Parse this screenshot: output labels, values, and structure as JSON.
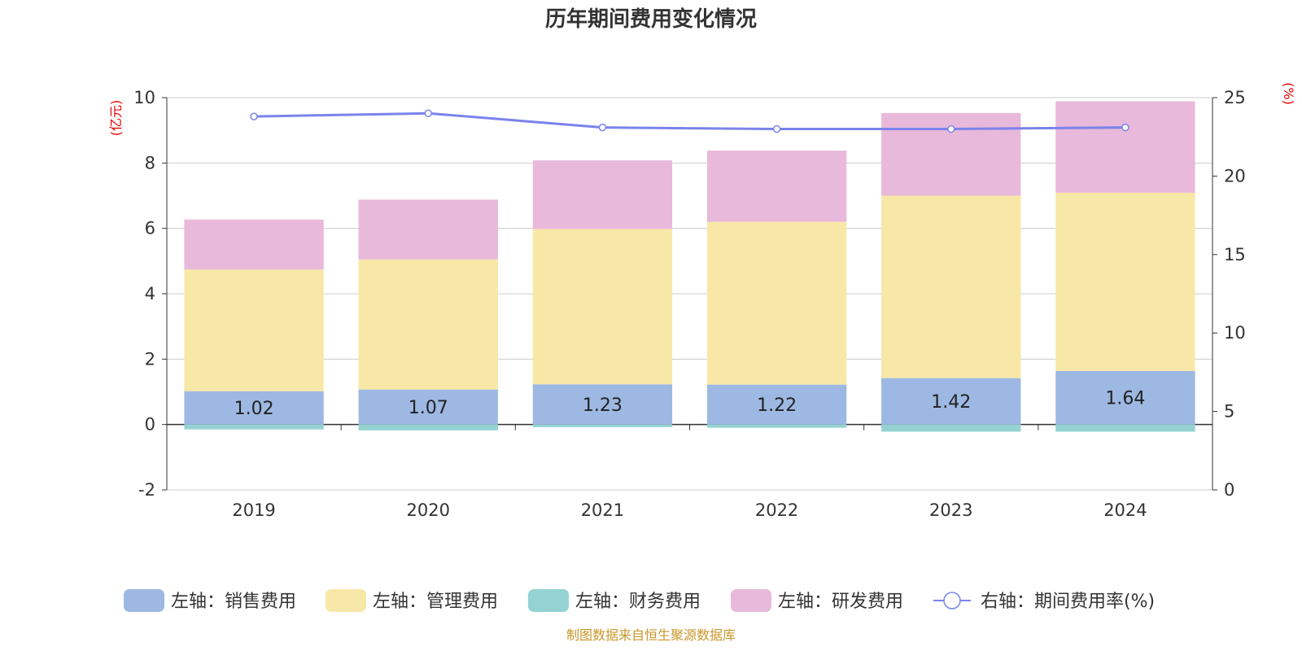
{
  "chart_data": {
    "type": "bar",
    "title": "历年期间费用变化情况",
    "categories": [
      "2019",
      "2020",
      "2021",
      "2022",
      "2023",
      "2024"
    ],
    "series": [
      {
        "name": "左轴：销售费用",
        "axis": "left",
        "color": "#9db8e2",
        "values": [
          1.02,
          1.07,
          1.23,
          1.22,
          1.42,
          1.64
        ],
        "labels": [
          "1.02",
          "1.07",
          "1.23",
          "1.22",
          "1.42",
          "1.64"
        ]
      },
      {
        "name": "左轴：管理费用",
        "axis": "left",
        "color": "#f8e8a8",
        "values": [
          3.72,
          3.98,
          4.75,
          4.98,
          5.58,
          5.45
        ]
      },
      {
        "name": "左轴：财务费用",
        "axis": "left",
        "color": "#95d3d3",
        "values": [
          -0.15,
          -0.18,
          -0.08,
          -0.1,
          -0.22,
          -0.22
        ]
      },
      {
        "name": "左轴：研发费用",
        "axis": "left",
        "color": "#e8b9da",
        "values": [
          1.53,
          1.83,
          2.1,
          2.18,
          2.53,
          2.8
        ]
      },
      {
        "name": "右轴：期间费用率(%)",
        "axis": "right",
        "type": "line",
        "color": "#7b83eb",
        "values": [
          23.8,
          24.0,
          23.1,
          23.0,
          23.0,
          23.1
        ]
      }
    ],
    "left_axis": {
      "unit": "(亿元)",
      "min": -2,
      "max": 10,
      "ticks": [
        "-2",
        "0",
        "2",
        "4",
        "6",
        "8",
        "10"
      ]
    },
    "right_axis": {
      "unit": "(%)",
      "min": 0,
      "max": 25,
      "ticks": [
        "0",
        "5",
        "10",
        "15",
        "20",
        "25"
      ]
    },
    "grid": true,
    "legend_position": "bottom",
    "source": "制图数据来自恒生聚源数据库"
  }
}
